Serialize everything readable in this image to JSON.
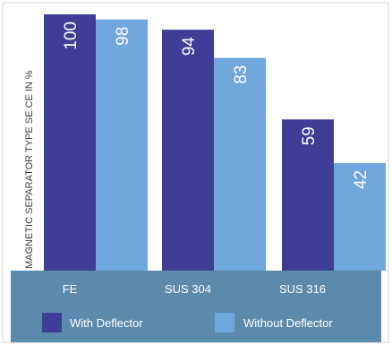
{
  "chart_data": {
    "type": "bar",
    "categories": [
      "FE",
      "SUS 304",
      "SUS 316"
    ],
    "series": [
      {
        "name": "With Deflector",
        "values": [
          100,
          94,
          59
        ],
        "color": "#3f3e96"
      },
      {
        "name": "Without Deflector",
        "values": [
          98,
          83,
          42
        ],
        "color": "#6fa6dc"
      }
    ],
    "ylabel": "MAGNETIC SEPARATOR TYPE SE.CE IN %",
    "xlabel": "",
    "ylim": [
      0,
      100
    ],
    "grid": false,
    "legend_position": "bottom",
    "colors": {
      "axis_band": "#5b8aad",
      "frame": "#cfd6dd",
      "value_label": "#ffffff"
    }
  }
}
